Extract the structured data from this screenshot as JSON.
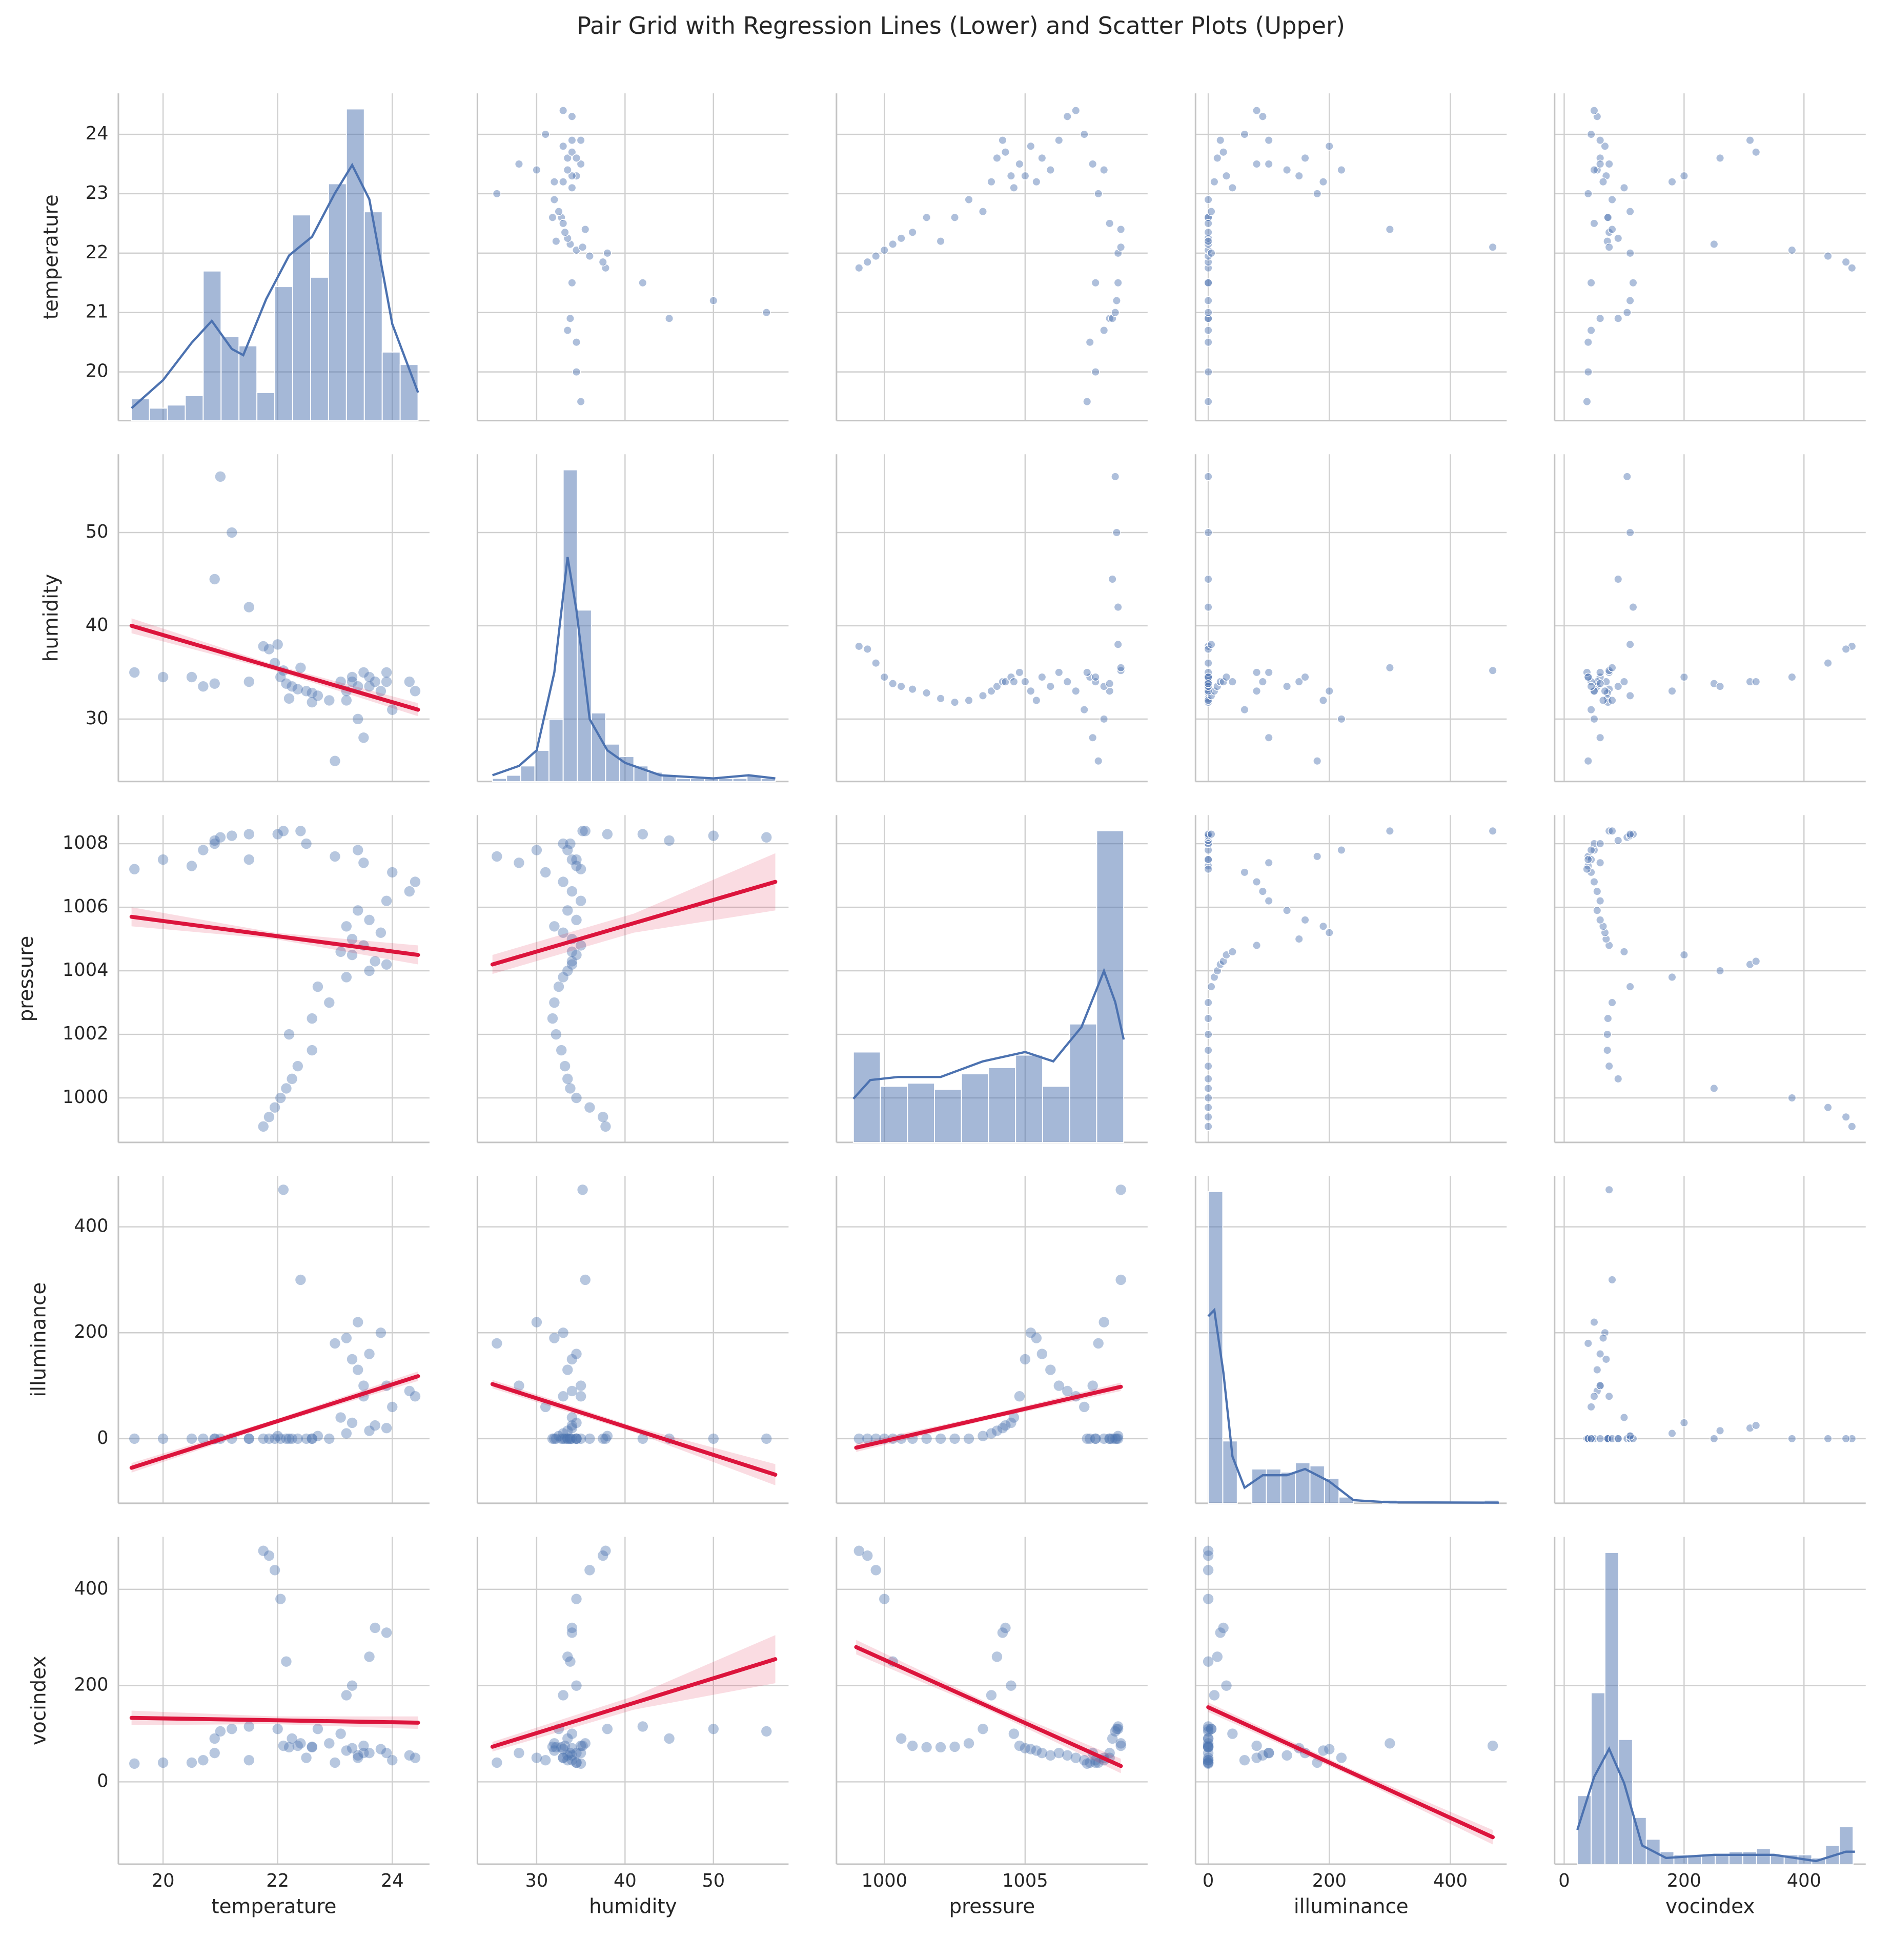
{
  "chart_data": {
    "type": "pairgrid",
    "title": "Pair Grid with Regression Lines (Lower) and Scatter Plots (Upper)",
    "variables": [
      "temperature",
      "humidity",
      "pressure",
      "illuminance",
      "vocindex"
    ],
    "xlims": [
      [
        19.22,
        24.65
      ],
      [
        23.3,
        58.5
      ],
      [
        998.3,
        1009.35
      ],
      [
        -21,
        493
      ],
      [
        -16,
        503
      ]
    ],
    "ylims": [
      [
        19.18,
        24.69
      ],
      [
        23.3,
        58.4
      ],
      [
        998.6,
        1008.9
      ],
      [
        -122,
        496
      ],
      [
        -171,
        509
      ]
    ],
    "xticks": [
      [
        20,
        22,
        24
      ],
      [
        30,
        40,
        50
      ],
      [
        1000,
        1005
      ],
      [
        0,
        200,
        400
      ],
      [
        0,
        200,
        400
      ]
    ],
    "yticks": [
      [
        20,
        21,
        22,
        23,
        24
      ],
      [
        30,
        40,
        50
      ],
      [
        1000,
        1002,
        1004,
        1006,
        1008
      ],
      [
        0,
        200,
        400
      ],
      [
        0,
        200,
        400
      ]
    ],
    "grid": true,
    "scatter_color": "#4c72b0",
    "regression_color": "#dc143c",
    "observations": [
      [
        21.75,
        21.85,
        21.95,
        22.05,
        22.15,
        22.25,
        22.35,
        22.6,
        22.2,
        22.6,
        22.9,
        22.7,
        23.2,
        23.6,
        23.9,
        23.7,
        23.3,
        23.1,
        23.5,
        23.3,
        23.8,
        23.2,
        23.6,
        23.4,
        23.9,
        24.3,
        24.4,
        24.0,
        23.5,
        23.0,
        23.4,
        22.5,
        21.5,
        20.5,
        19.5,
        20.0,
        20.7,
        20.9,
        20.9,
        21.0,
        21.2,
        21.5,
        22.0,
        22.1,
        22.4
      ],
      [
        37.8,
        37.5,
        36.0,
        34.5,
        33.8,
        33.5,
        33.2,
        32.8,
        32.2,
        31.8,
        32.0,
        32.5,
        33.0,
        33.5,
        34.0,
        34.0,
        34.5,
        34.0,
        35.0,
        34.0,
        33.0,
        32.0,
        34.5,
        33.5,
        35.0,
        34.0,
        33.0,
        31.0,
        28.0,
        25.5,
        30.0,
        33.0,
        34.0,
        34.5,
        35.0,
        34.5,
        33.5,
        33.8,
        45.0,
        56.0,
        50.0,
        42.0,
        38.0,
        35.2,
        35.5
      ],
      [
        999.1,
        999.4,
        999.7,
        1000.0,
        1000.3,
        1000.6,
        1001.0,
        1001.5,
        1002.0,
        1002.5,
        1003.0,
        1003.5,
        1003.8,
        1004.0,
        1004.2,
        1004.3,
        1004.5,
        1004.6,
        1004.8,
        1005.0,
        1005.2,
        1005.4,
        1005.6,
        1005.9,
        1006.2,
        1006.5,
        1006.8,
        1007.1,
        1007.4,
        1007.6,
        1007.8,
        1008.0,
        1007.5,
        1007.3,
        1007.2,
        1007.5,
        1007.8,
        1008.0,
        1008.1,
        1008.2,
        1008.25,
        1008.3,
        1008.3,
        1008.4,
        1008.4
      ],
      [
        0,
        0,
        0,
        0,
        0,
        0,
        0,
        0,
        0,
        0,
        0,
        5,
        10,
        15,
        20,
        25,
        30,
        40,
        80,
        150,
        200,
        190,
        160,
        130,
        100,
        90,
        80,
        60,
        100,
        180,
        220,
        0,
        0,
        0,
        0,
        0,
        0,
        0,
        0,
        0,
        0,
        0,
        5,
        470,
        300
      ],
      [
        480,
        470,
        440,
        380,
        250,
        90,
        75,
        72,
        72,
        73,
        80,
        110,
        180,
        260,
        310,
        320,
        200,
        100,
        75,
        70,
        68,
        65,
        60,
        55,
        60,
        55,
        50,
        45,
        60,
        40,
        50,
        50,
        45,
        40,
        38,
        40,
        45,
        60,
        90,
        105,
        110,
        115,
        110,
        75,
        80
      ]
    ],
    "countlims": [
      [
        0,
        105
      ],
      [
        0,
        105
      ],
      [
        0,
        105
      ],
      [
        0,
        105
      ],
      [
        0,
        105
      ]
    ],
    "histograms": [
      {
        "bins": [
          19.45,
          19.7625,
          20.075,
          20.3875,
          20.7,
          21.0125,
          21.325,
          21.6375,
          21.95,
          22.2625,
          22.575,
          22.8875,
          23.2,
          23.5125,
          23.825,
          24.1375,
          24.45
        ],
        "counts": [
          7,
          4,
          5,
          8,
          48,
          27,
          24,
          9,
          43,
          66,
          46,
          76,
          100,
          67,
          22,
          18
        ]
      },
      {
        "bins": [
          25,
          26.6,
          28.2,
          29.8,
          31.4,
          33,
          34.6,
          36.2,
          37.8,
          39.4,
          41,
          42.6,
          44.2,
          45.8,
          47.4,
          49,
          50.6,
          52.2,
          53.8,
          55.4,
          57
        ],
        "counts": [
          1,
          2,
          5,
          10,
          20,
          100,
          55,
          22,
          12,
          8,
          5,
          3,
          2,
          1,
          1,
          1,
          1,
          1,
          2,
          1
        ]
      },
      {
        "bins": [
          998.9,
          999.86,
          1000.82,
          1001.78,
          1002.74,
          1003.7,
          1004.66,
          1005.62,
          1006.58,
          1007.54,
          1008.5
        ],
        "counts": [
          29,
          18,
          19,
          17,
          22,
          24,
          28,
          18,
          38,
          100
        ]
      },
      {
        "bins": [
          0,
          24,
          48,
          72,
          96,
          120,
          144,
          168,
          192,
          216,
          240,
          264,
          288,
          312,
          336,
          360,
          384,
          408,
          432,
          456,
          480
        ],
        "counts": [
          100,
          20,
          0,
          11,
          11,
          10,
          13,
          12,
          8,
          2,
          0,
          0,
          1,
          0,
          0,
          0,
          0,
          0,
          0,
          1
        ]
      },
      {
        "bins": [
          22,
          45,
          68,
          91,
          114,
          137,
          160,
          183,
          206,
          229,
          252,
          275,
          298,
          321,
          344,
          367,
          390,
          413,
          436,
          459,
          482
        ],
        "counts": [
          22,
          55,
          100,
          40,
          15,
          8,
          4,
          3,
          3,
          3,
          3,
          4,
          4,
          5,
          3,
          3,
          3,
          2,
          6,
          12
        ]
      }
    ],
    "kde": [
      {
        "x": [
          19.45,
          20.0,
          20.5,
          20.85,
          21.2,
          21.4,
          21.8,
          22.2,
          22.6,
          23.0,
          23.3,
          23.6,
          24.0,
          24.45
        ],
        "y": [
          4,
          13,
          25,
          32,
          23,
          21,
          39,
          53,
          59,
          73,
          82,
          71,
          31,
          9
        ]
      },
      {
        "x": [
          25,
          28,
          30,
          32,
          33.5,
          34.5,
          36,
          38,
          40,
          44,
          50,
          54,
          57
        ],
        "y": [
          2,
          5,
          10,
          35,
          72,
          55,
          20,
          10,
          6,
          2,
          1,
          2,
          1
        ]
      },
      {
        "x": [
          998.9,
          999.5,
          1000.5,
          1002,
          1003.5,
          1005,
          1006,
          1007,
          1007.8,
          1008.2,
          1008.5
        ],
        "y": [
          14,
          20,
          21,
          21,
          26,
          29,
          26,
          37,
          55,
          45,
          33
        ]
      },
      {
        "x": [
          0,
          10,
          25,
          40,
          60,
          90,
          130,
          160,
          200,
          240,
          300,
          480
        ],
        "y": [
          60,
          62,
          42,
          15,
          5,
          9,
          9,
          11,
          7,
          1,
          0.3,
          0.2
        ]
      },
      {
        "x": [
          22,
          50,
          75,
          100,
          130,
          170,
          250,
          350,
          420,
          470,
          485
        ],
        "y": [
          11,
          28,
          37,
          26,
          6,
          2,
          3,
          3,
          1,
          4,
          4
        ]
      }
    ],
    "regressions": [
      {
        "row": 1,
        "col": 0,
        "x": [
          19.45,
          21.95,
          24.45
        ],
        "y": [
          40,
          35.5,
          31
        ],
        "lo": [
          39.2,
          35.2,
          30.3
        ],
        "hi": [
          40.8,
          35.8,
          31.7
        ]
      },
      {
        "row": 2,
        "col": 0,
        "x": [
          19.45,
          21.95,
          24.45
        ],
        "y": [
          1005.7,
          1005.1,
          1004.5
        ],
        "lo": [
          1005.4,
          1005.0,
          1004.2
        ],
        "hi": [
          1006.0,
          1005.2,
          1004.8
        ]
      },
      {
        "row": 2,
        "col": 1,
        "x": [
          25,
          41,
          57
        ],
        "y": [
          1004.2,
          1005.5,
          1006.8
        ],
        "lo": [
          1003.9,
          1005.2,
          1005.9
        ],
        "hi": [
          1004.5,
          1005.8,
          1007.7
        ]
      },
      {
        "row": 3,
        "col": 0,
        "x": [
          19.45,
          21.95,
          24.45
        ],
        "y": [
          -55,
          31.5,
          118
        ],
        "lo": [
          -64,
          27,
          109
        ],
        "hi": [
          -46,
          36,
          127
        ]
      },
      {
        "row": 3,
        "col": 1,
        "x": [
          25,
          41,
          57
        ],
        "y": [
          103,
          17.5,
          -68
        ],
        "lo": [
          95,
          12,
          -88
        ],
        "hi": [
          111,
          23,
          -48
        ]
      },
      {
        "row": 3,
        "col": 2,
        "x": [
          999,
          1003.7,
          1008.4
        ],
        "y": [
          -17,
          40.5,
          98
        ],
        "lo": [
          -25,
          36,
          90
        ],
        "hi": [
          -9,
          45,
          106
        ]
      },
      {
        "row": 4,
        "col": 0,
        "x": [
          19.45,
          21.95,
          24.45
        ],
        "y": [
          133,
          128,
          123
        ],
        "lo": [
          118,
          120,
          110
        ],
        "hi": [
          148,
          136,
          136
        ]
      },
      {
        "row": 4,
        "col": 1,
        "x": [
          25,
          41,
          57
        ],
        "y": [
          73,
          164,
          255
        ],
        "lo": [
          63,
          150,
          205
        ],
        "hi": [
          83,
          178,
          305
        ]
      },
      {
        "row": 4,
        "col": 2,
        "x": [
          999,
          1003.7,
          1008.4
        ],
        "y": [
          280,
          156.5,
          33
        ],
        "lo": [
          265,
          149,
          18
        ],
        "hi": [
          295,
          164,
          48
        ]
      },
      {
        "row": 4,
        "col": 3,
        "x": [
          0,
          235,
          470
        ],
        "y": [
          155,
          20,
          -115
        ],
        "lo": [
          145,
          13,
          -130
        ],
        "hi": [
          165,
          27,
          -100
        ]
      }
    ]
  }
}
